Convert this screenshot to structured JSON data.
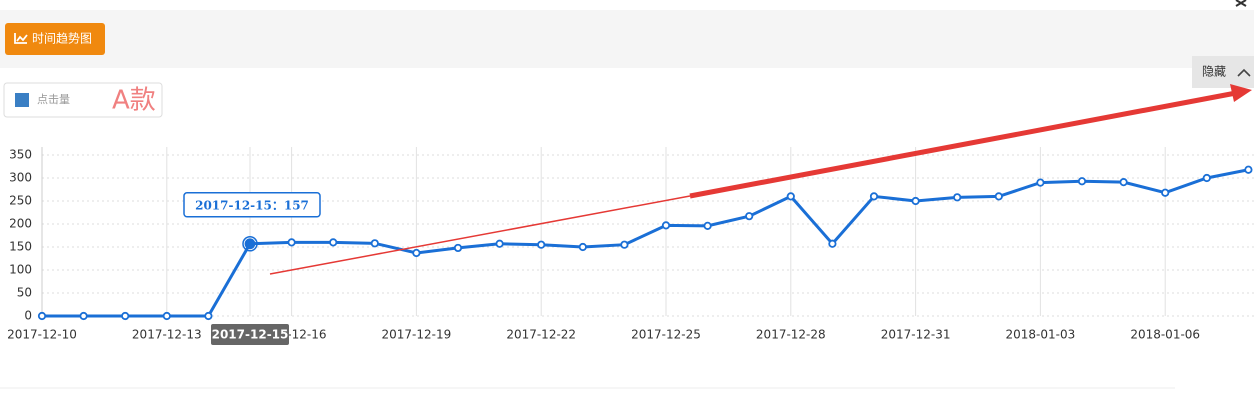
{
  "toolbar": {
    "button": "时间趋势图",
    "toggle": "隐藏"
  },
  "chart_data": {
    "type": "line",
    "annotation": "A款",
    "tooltip": "2017-12-15：157",
    "categories": [
      "2017-12-10",
      null,
      null,
      "2017-12-13",
      null,
      "2017-12-15",
      "2017-12-16",
      null,
      null,
      "2017-12-19",
      null,
      null,
      "2017-12-22",
      null,
      null,
      "2017-12-25",
      null,
      null,
      "2017-12-28",
      null,
      null,
      "2017-12-31",
      null,
      null,
      "2018-01-03",
      null,
      null,
      "2018-01-06",
      null,
      null
    ],
    "series": [
      {
        "name": "点击量",
        "color": "#1a6fd6",
        "values": [
          0,
          0,
          0,
          0,
          0,
          157,
          160,
          160,
          158,
          137,
          148,
          157,
          155,
          150,
          155,
          197,
          196,
          217,
          260,
          157,
          260,
          250,
          258,
          260,
          290,
          293,
          291,
          268,
          300,
          318
        ]
      }
    ],
    "ylim": [
      0,
      350
    ],
    "yticks": [
      0,
      50,
      100,
      150,
      200,
      250,
      300,
      350
    ],
    "grid": true
  }
}
